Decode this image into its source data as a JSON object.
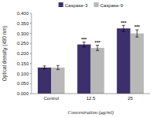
{
  "chart_data": {
    "type": "bar",
    "categories": [
      "Control",
      "12.5",
      "25"
    ],
    "series": [
      {
        "name": "Caspase-3",
        "color": "#3d2f6b",
        "values": [
          0.13,
          0.245,
          0.325
        ],
        "errors": [
          0.008,
          0.012,
          0.015
        ]
      },
      {
        "name": "Caspase-9",
        "color": "#b8b8b8",
        "values": [
          0.13,
          0.228,
          0.3
        ],
        "errors": [
          0.01,
          0.013,
          0.018
        ]
      }
    ],
    "xlabel": "Concentration (μg/ml)",
    "ylabel": "Optical density (490 nm)",
    "ylim": [
      0,
      0.4
    ],
    "yticks": [
      {
        "value": 0,
        "label": "0.000"
      },
      {
        "value": 0.05,
        "label": "0.050"
      },
      {
        "value": 0.1,
        "label": "0.100"
      },
      {
        "value": 0.15,
        "label": "0.150"
      },
      {
        "value": 0.2,
        "label": "0.200"
      },
      {
        "value": 0.25,
        "label": "0.250"
      },
      {
        "value": 0.3,
        "label": "0.300"
      },
      {
        "value": 0.35,
        "label": "0.350"
      },
      {
        "value": 0.4,
        "label": "0.400"
      }
    ],
    "annotations": [
      {
        "text": "***",
        "category": "12.5",
        "series": "Caspase-3"
      },
      {
        "text": "***",
        "category": "12.5",
        "series": "Caspase-9"
      },
      {
        "text": "***",
        "category": "25",
        "series": "Caspase-3"
      },
      {
        "text": "***",
        "category": "25",
        "series": "Caspase-9"
      }
    ],
    "legend": "top",
    "grid": false
  }
}
